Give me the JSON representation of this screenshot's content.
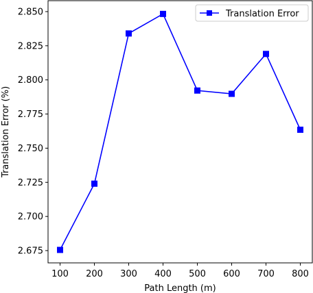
{
  "chart_data": {
    "type": "line",
    "xlabel": "Path Length (m)",
    "ylabel": "Translation Error (%)",
    "xlim": [
      65,
      835
    ],
    "ylim": [
      2.666,
      2.858
    ],
    "x_ticks": [
      100,
      200,
      300,
      400,
      500,
      600,
      700,
      800
    ],
    "x_tick_labels": [
      "100",
      "200",
      "300",
      "400",
      "500",
      "600",
      "700",
      "800"
    ],
    "y_ticks": [
      2.675,
      2.7,
      2.725,
      2.75,
      2.775,
      2.8,
      2.825,
      2.85
    ],
    "y_tick_labels": [
      "2.675",
      "2.700",
      "2.725",
      "2.750",
      "2.775",
      "2.800",
      "2.825",
      "2.850"
    ],
    "grid": false,
    "legend_position": "top-right",
    "series": [
      {
        "name": "Translation Error",
        "color": "#0000ff",
        "marker": "square",
        "x": [
          100,
          200,
          300,
          400,
          500,
          600,
          700,
          800
        ],
        "y": [
          2.6755,
          2.724,
          2.834,
          2.8483,
          2.7922,
          2.7898,
          2.819,
          2.7635
        ]
      }
    ]
  }
}
